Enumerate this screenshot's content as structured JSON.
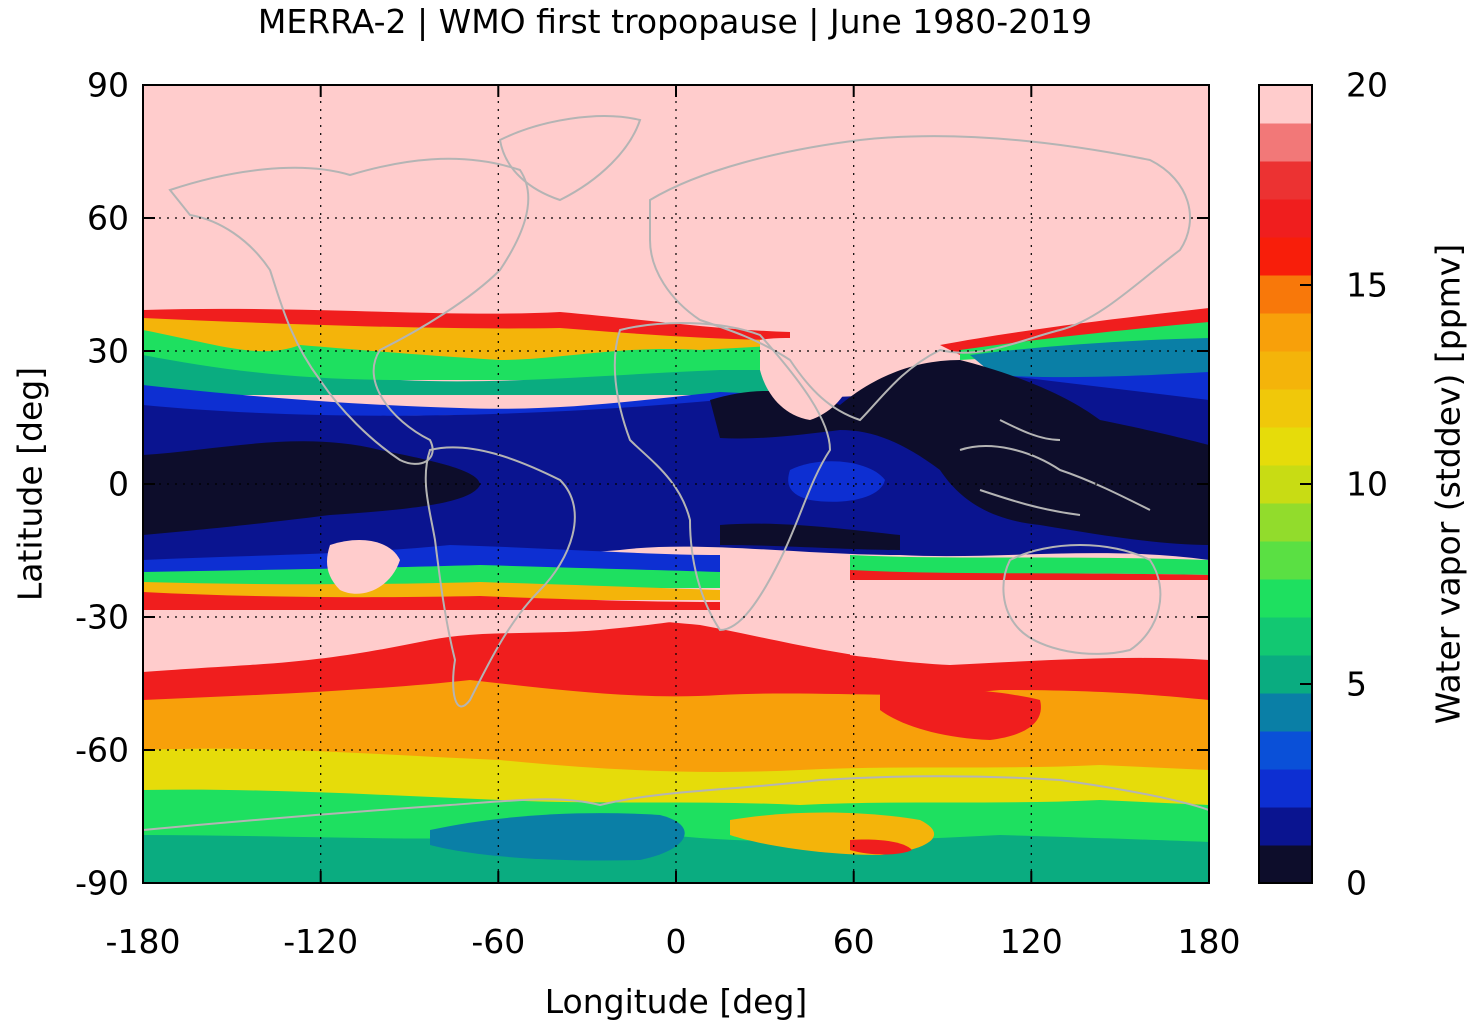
{
  "title": "MERRA-2 | WMO first tropopause | June 1980-2019",
  "xaxis": {
    "label": "Longitude [deg]",
    "ticks": [
      "-180",
      "-120",
      "-60",
      "0",
      "60",
      "120",
      "180"
    ],
    "range": [
      -180,
      180
    ]
  },
  "yaxis": {
    "label": "Latitude [deg]",
    "ticks": [
      "90",
      "60",
      "30",
      "0",
      "-30",
      "-60",
      "-90"
    ],
    "range": [
      -90,
      90
    ]
  },
  "colorbar": {
    "label": "Water vapor (stddev) [ppmv]",
    "ticks": [
      "20",
      "15",
      "10",
      "5",
      "0"
    ],
    "range": [
      0,
      20
    ],
    "colors": [
      "#0d0d2b",
      "#0a1490",
      "#0d2fd2",
      "#0a50d8",
      "#0a7fa6",
      "#0aac80",
      "#12c872",
      "#1ee060",
      "#5ae043",
      "#92dc2c",
      "#c8dc14",
      "#e6dc0a",
      "#f0c80a",
      "#f4b40a",
      "#f8a00a",
      "#f8780a",
      "#f81e0a",
      "#f01e1e",
      "#ec3232",
      "#f27878",
      "#ffcccc"
    ]
  },
  "grid": "dotted",
  "coastlines": "grey",
  "chart_data": {
    "type": "heatmap",
    "title": "MERRA-2 | WMO first tropopause | June 1980-2019",
    "xlabel": "Longitude [deg]",
    "ylabel": "Latitude [deg]",
    "xlim": [
      -180,
      180
    ],
    "ylim": [
      -90,
      90
    ],
    "zlabel": "Water vapor (stddev) [ppmv]",
    "zlim": [
      0,
      20
    ],
    "approx_zonal_values": [
      {
        "lat_range": [
          40,
          90
        ],
        "value": 20
      },
      {
        "lat_range": [
          25,
          38
        ],
        "value": 8
      },
      {
        "lat_range": [
          15,
          25
        ],
        "value": 3
      },
      {
        "lat_range": [
          -12,
          15
        ],
        "value": 1
      },
      {
        "lat_range": [
          -22,
          -12
        ],
        "value": 3
      },
      {
        "lat_range": [
          -40,
          -24
        ],
        "value": 20
      },
      {
        "lat_range": [
          -55,
          -40
        ],
        "value": 16
      },
      {
        "lat_range": [
          -65,
          -55
        ],
        "value": 13
      },
      {
        "lat_range": [
          -80,
          -65
        ],
        "value": 8
      },
      {
        "lat_range": [
          -90,
          -80
        ],
        "value": 5
      }
    ]
  }
}
